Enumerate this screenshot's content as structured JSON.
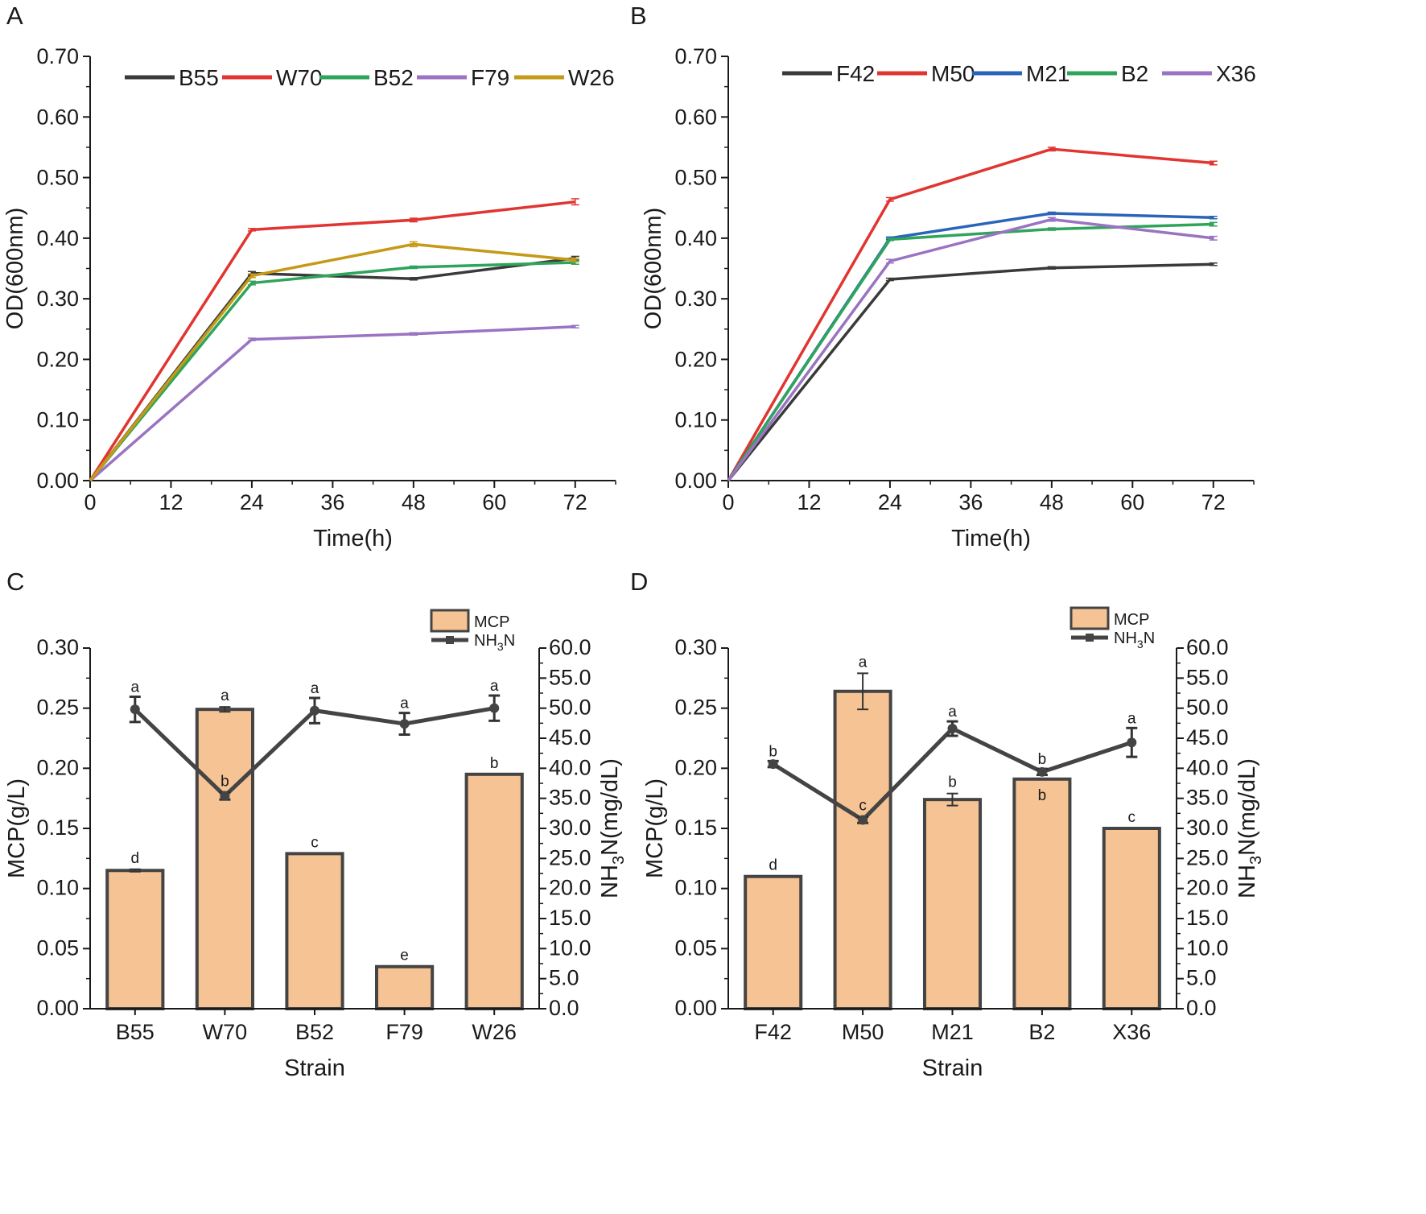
{
  "chart_data": [
    {
      "panel": "A",
      "type": "line",
      "xlabel": "Time(h)",
      "ylabel": "OD(600nm)",
      "xlim": [
        0,
        78
      ],
      "ylim": [
        0,
        0.7
      ],
      "x_ticks": [
        "0",
        "12",
        "24",
        "36",
        "48",
        "60",
        "72"
      ],
      "y_ticks": [
        "0.00",
        "0.10",
        "0.20",
        "0.30",
        "0.40",
        "0.50",
        "0.60",
        "0.70"
      ],
      "legend_position": "top",
      "x": [
        0,
        24,
        48,
        72
      ],
      "series": [
        {
          "name": "B55",
          "color": "#3a3a3a",
          "values": [
            0,
            0.342,
            0.333,
            0.367
          ],
          "errors": [
            0,
            0.003,
            0.002,
            0.003
          ]
        },
        {
          "name": "W70",
          "color": "#e03530",
          "values": [
            0,
            0.414,
            0.43,
            0.46
          ],
          "errors": [
            0,
            0.002,
            0.003,
            0.005
          ]
        },
        {
          "name": "B52",
          "color": "#2fa45b",
          "values": [
            0,
            0.326,
            0.352,
            0.36
          ],
          "errors": [
            0,
            0.003,
            0.002,
            0.003
          ]
        },
        {
          "name": "F79",
          "color": "#9a73c2",
          "values": [
            0,
            0.233,
            0.242,
            0.254
          ],
          "errors": [
            0,
            0.002,
            0.002,
            0.002
          ]
        },
        {
          "name": "W26",
          "color": "#c49a18",
          "values": [
            0,
            0.338,
            0.39,
            0.364
          ],
          "errors": [
            0,
            0.003,
            0.004,
            0.003
          ]
        }
      ]
    },
    {
      "panel": "B",
      "type": "line",
      "xlabel": "Time(h)",
      "ylabel": "OD(600nm)",
      "xlim": [
        0,
        78
      ],
      "ylim": [
        0,
        0.7
      ],
      "x_ticks": [
        "0",
        "12",
        "24",
        "36",
        "48",
        "60",
        "72"
      ],
      "y_ticks": [
        "0.00",
        "0.10",
        "0.20",
        "0.30",
        "0.40",
        "0.50",
        "0.60",
        "0.70"
      ],
      "legend_position": "top",
      "x": [
        0,
        24,
        48,
        72
      ],
      "series": [
        {
          "name": "F42",
          "color": "#3a3a3a",
          "values": [
            0,
            0.332,
            0.351,
            0.357
          ],
          "errors": [
            0,
            0.002,
            0.002,
            0.002
          ]
        },
        {
          "name": "M50",
          "color": "#e03530",
          "values": [
            0,
            0.464,
            0.547,
            0.524
          ],
          "errors": [
            0,
            0.003,
            0.003,
            0.003
          ]
        },
        {
          "name": "M21",
          "color": "#2a64b8",
          "values": [
            0,
            0.4,
            0.441,
            0.434
          ],
          "errors": [
            0,
            0.002,
            0.002,
            0.002
          ]
        },
        {
          "name": "B2",
          "color": "#2fa45b",
          "values": [
            0,
            0.398,
            0.415,
            0.423
          ],
          "errors": [
            0,
            0.002,
            0.002,
            0.003
          ]
        },
        {
          "name": "X36",
          "color": "#9a73c2",
          "values": [
            0,
            0.362,
            0.431,
            0.4
          ],
          "errors": [
            0,
            0.003,
            0.003,
            0.003
          ]
        }
      ]
    },
    {
      "panel": "C",
      "type": "bar",
      "xlabel": "Strain",
      "ylabel": "MCP(g/L)",
      "y2label_main": "NH",
      "y2label_sub": "3",
      "y2label_rest": "N(mg/dL)",
      "categories": [
        "B55",
        "W70",
        "B52",
        "F79",
        "W26"
      ],
      "ylim": [
        0,
        0.3
      ],
      "y2lim": [
        0,
        60
      ],
      "y_ticks": [
        "0.00",
        "0.05",
        "0.10",
        "0.15",
        "0.20",
        "0.25",
        "0.30"
      ],
      "y2_ticks": [
        "0.0",
        "5.0",
        "10.0",
        "15.0",
        "20.0",
        "25.0",
        "30.0",
        "35.0",
        "40.0",
        "45.0",
        "50.0",
        "55.0",
        "60.0"
      ],
      "legend_position": "top-right",
      "legend": {
        "bar": "MCP",
        "line_main": "NH",
        "line_sub": "3",
        "line_rest": "N"
      },
      "bar_series": {
        "name": "MCP",
        "color": "#f5c394",
        "values": [
          0.115,
          0.249,
          0.129,
          0.035,
          0.195
        ],
        "errors": [
          0.001,
          0.002,
          0.0,
          0.0,
          0.0
        ],
        "letters": [
          "d",
          "a",
          "c",
          "e",
          "b"
        ]
      },
      "line_series": {
        "name": "NH3N",
        "color": "#444444",
        "values": [
          49.8,
          35.4,
          49.6,
          47.4,
          50.0
        ],
        "errors": [
          2.1,
          0.6,
          2.1,
          1.8,
          2.1
        ],
        "letters": [
          "a",
          "b",
          "a",
          "a",
          "a"
        ]
      }
    },
    {
      "panel": "D",
      "type": "bar",
      "xlabel": "Strain",
      "ylabel": "MCP(g/L)",
      "y2label_main": "NH",
      "y2label_sub": "3",
      "y2label_rest": "N(mg/dL)",
      "categories": [
        "F42",
        "M50",
        "M21",
        "B2",
        "X36"
      ],
      "ylim": [
        0,
        0.3
      ],
      "y2lim": [
        0,
        60
      ],
      "y_ticks": [
        "0.00",
        "0.05",
        "0.10",
        "0.15",
        "0.20",
        "0.25",
        "0.30"
      ],
      "y2_ticks": [
        "0.0",
        "5.0",
        "10.0",
        "15.0",
        "20.0",
        "25.0",
        "30.0",
        "35.0",
        "40.0",
        "45.0",
        "50.0",
        "55.0",
        "60.0"
      ],
      "legend_position": "top-right",
      "legend": {
        "bar": "MCP",
        "line_main": "NH",
        "line_sub": "3",
        "line_rest": "N"
      },
      "bar_series": {
        "name": "MCP",
        "color": "#f5c394",
        "values": [
          0.11,
          0.264,
          0.174,
          0.191,
          0.15
        ],
        "errors": [
          0.0,
          0.015,
          0.005,
          0.0,
          0.0
        ],
        "letters": [
          "d",
          "a",
          "b",
          "b",
          "c"
        ]
      },
      "line_series": {
        "name": "NH3N",
        "color": "#444444",
        "values": [
          40.7,
          31.4,
          46.6,
          39.4,
          44.3
        ],
        "errors": [
          0.5,
          0.5,
          1.2,
          0.5,
          2.4
        ],
        "letters": [
          "b",
          "c",
          "a",
          "b",
          "a"
        ]
      }
    }
  ]
}
